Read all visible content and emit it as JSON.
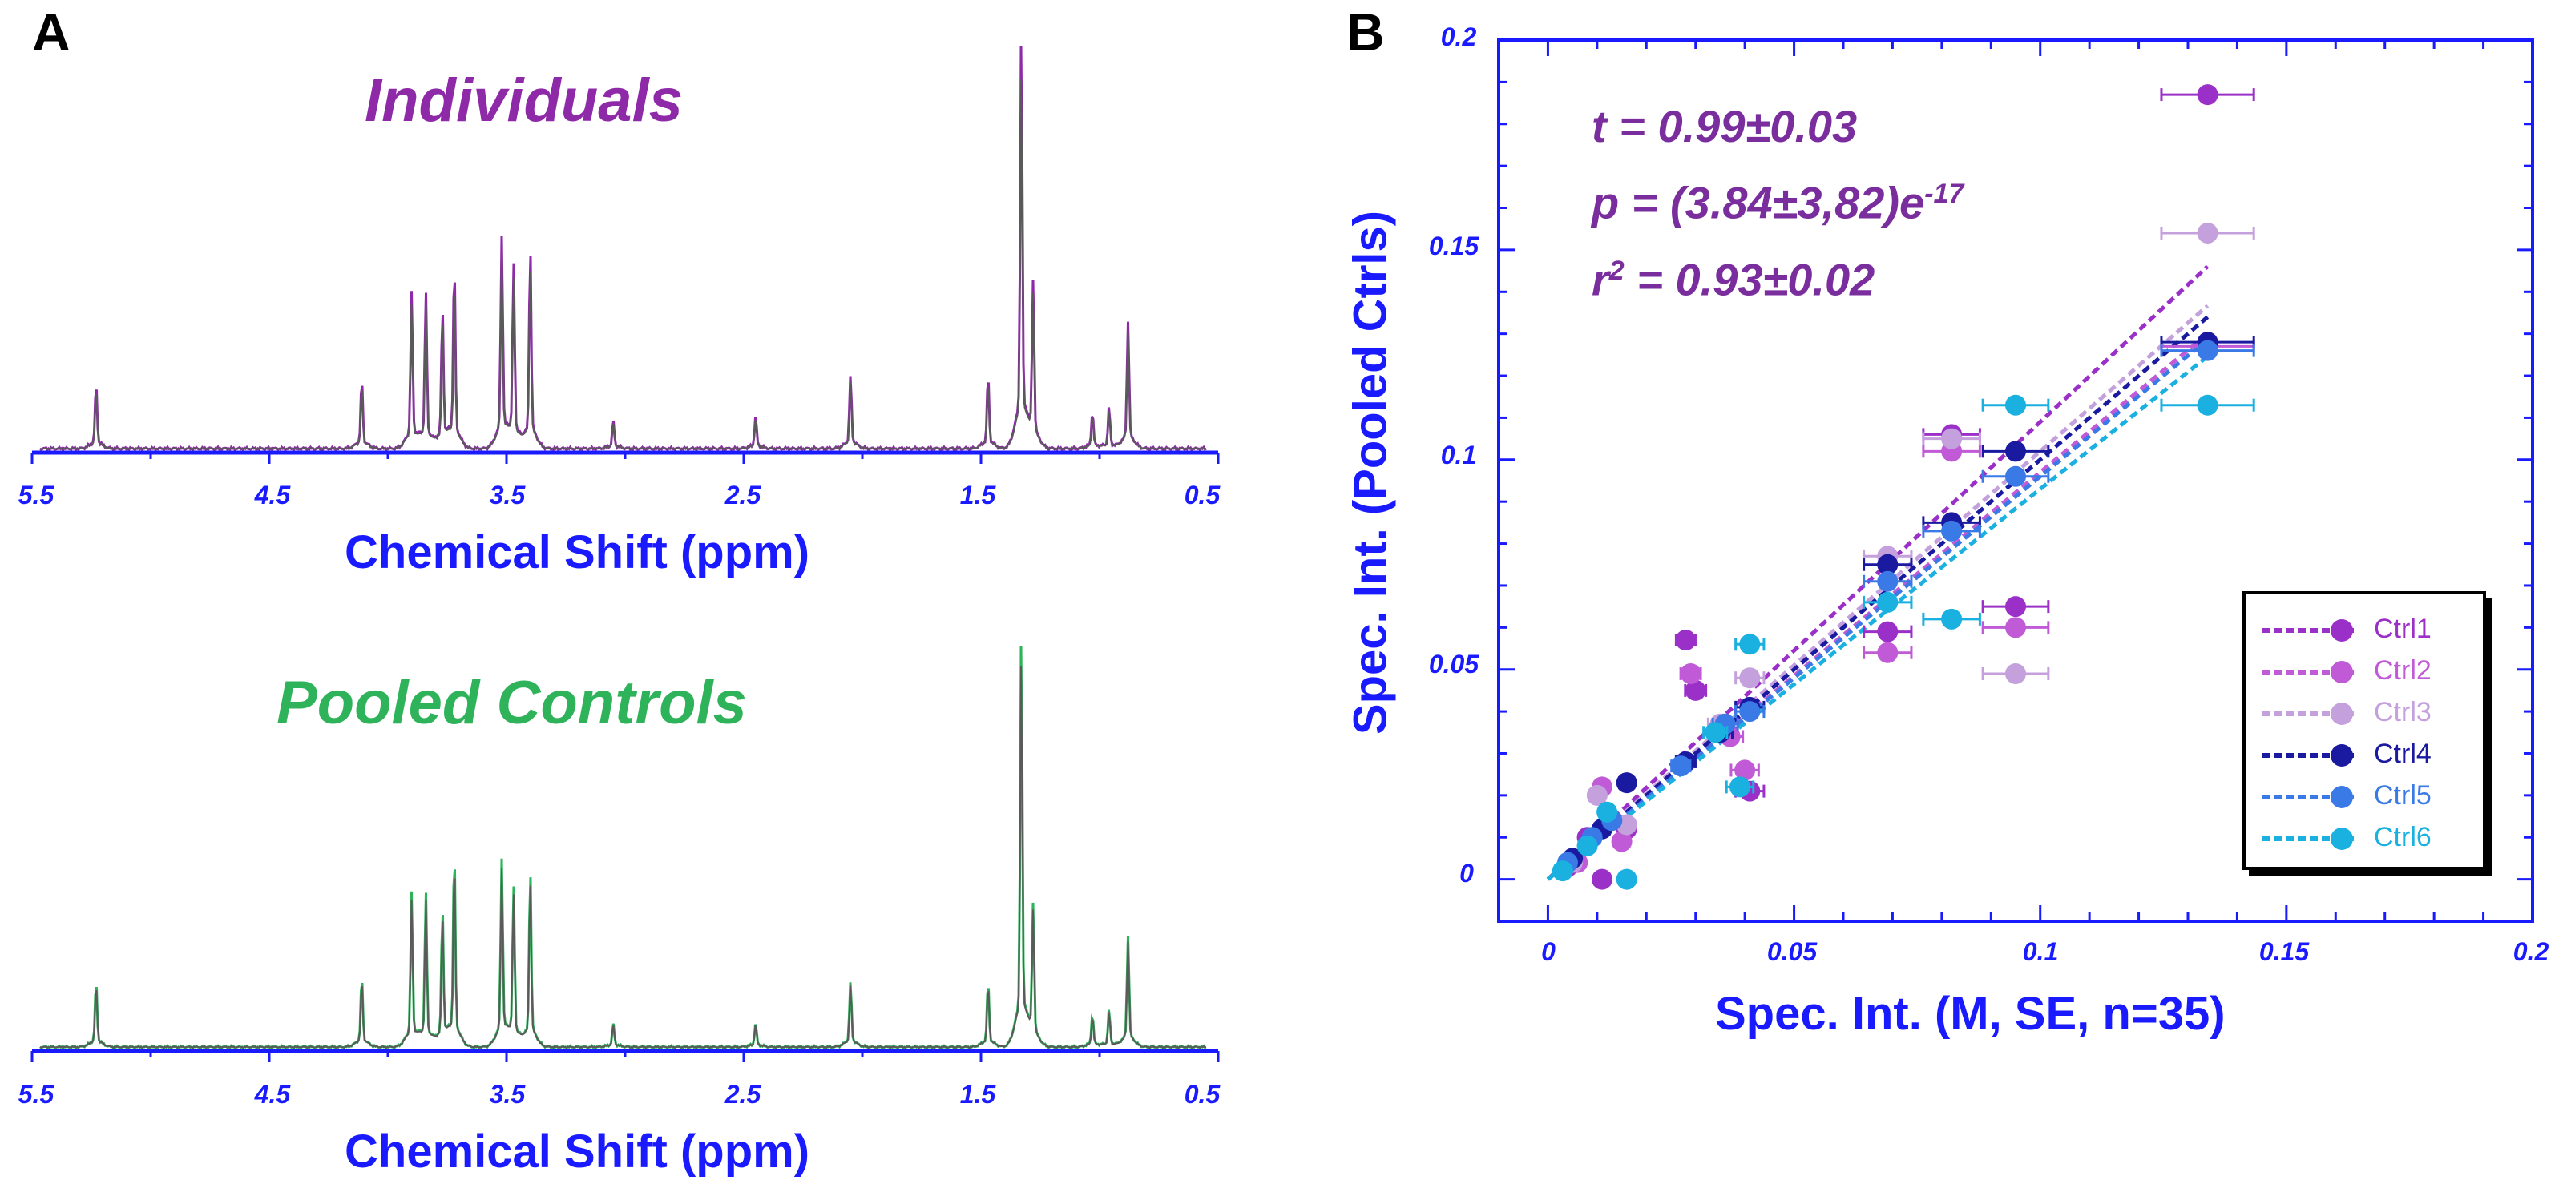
{
  "panel_a": {
    "letter": "A",
    "top_title": "Individuals",
    "bottom_title": "Pooled Controls",
    "x_axis_title": "Chemical Shift (ppm)",
    "x_ticks": [
      "5.5",
      "4.5",
      "3.5",
      "2.5",
      "1.5",
      "0.5"
    ],
    "colors": {
      "individuals": "#8e2aa8",
      "controls": "#2fb35a",
      "trace": "#5a5a5a",
      "axis": "#1a1aff"
    }
  },
  "panel_b": {
    "letter": "B",
    "x_axis_title": "Spec. Int. (M, SE, n=35)",
    "y_axis_title": "Spec. Int. (Pooled Ctrls)",
    "stats": {
      "t": "t = 0.99±0.03",
      "p_main": "p = (3.84±3,82)e",
      "p_exp": "-17",
      "r_main": "r",
      "r_sup": "2",
      "r_rest": " = 0.93±0.02"
    }
  },
  "chart_data": [
    {
      "type": "line",
      "title": "Individuals",
      "xlabel": "Chemical Shift (ppm)",
      "xlim": [
        5.5,
        0.5
      ],
      "x_ticks": [
        5.5,
        4.5,
        3.5,
        2.5,
        1.5,
        0.5
      ],
      "peaks": [
        {
          "ppm": 5.23,
          "height": 0.14
        },
        {
          "ppm": 4.11,
          "height": 0.15
        },
        {
          "ppm": 3.9,
          "height": 0.34
        },
        {
          "ppm": 3.84,
          "height": 0.34
        },
        {
          "ppm": 3.77,
          "height": 0.3
        },
        {
          "ppm": 3.72,
          "height": 0.4
        },
        {
          "ppm": 3.52,
          "height": 0.46
        },
        {
          "ppm": 3.47,
          "height": 0.4
        },
        {
          "ppm": 3.4,
          "height": 0.44
        },
        {
          "ppm": 3.05,
          "height": 0.06
        },
        {
          "ppm": 2.45,
          "height": 0.07
        },
        {
          "ppm": 2.05,
          "height": 0.16
        },
        {
          "ppm": 1.47,
          "height": 0.16
        },
        {
          "ppm": 1.33,
          "height": 0.9
        },
        {
          "ppm": 1.28,
          "height": 0.36
        },
        {
          "ppm": 1.03,
          "height": 0.08
        },
        {
          "ppm": 0.96,
          "height": 0.09
        },
        {
          "ppm": 0.88,
          "height": 0.28
        }
      ]
    },
    {
      "type": "line",
      "title": "Pooled Controls",
      "xlabel": "Chemical Shift (ppm)",
      "xlim": [
        5.5,
        0.5
      ],
      "x_ticks": [
        5.5,
        4.5,
        3.5,
        2.5,
        1.5,
        0.5
      ],
      "peaks": [
        {
          "ppm": 5.23,
          "height": 0.14
        },
        {
          "ppm": 4.11,
          "height": 0.15
        },
        {
          "ppm": 3.9,
          "height": 0.33
        },
        {
          "ppm": 3.84,
          "height": 0.33
        },
        {
          "ppm": 3.77,
          "height": 0.29
        },
        {
          "ppm": 3.72,
          "height": 0.42
        },
        {
          "ppm": 3.52,
          "height": 0.4
        },
        {
          "ppm": 3.47,
          "height": 0.34
        },
        {
          "ppm": 3.4,
          "height": 0.38
        },
        {
          "ppm": 3.05,
          "height": 0.05
        },
        {
          "ppm": 2.45,
          "height": 0.05
        },
        {
          "ppm": 2.05,
          "height": 0.14
        },
        {
          "ppm": 1.47,
          "height": 0.14
        },
        {
          "ppm": 1.33,
          "height": 0.88
        },
        {
          "ppm": 1.28,
          "height": 0.3
        },
        {
          "ppm": 1.03,
          "height": 0.07
        },
        {
          "ppm": 0.96,
          "height": 0.08
        },
        {
          "ppm": 0.88,
          "height": 0.24
        }
      ]
    },
    {
      "type": "scatter",
      "xlabel": "Spec. Int. (M, SE, n=35)",
      "ylabel": "Spec. Int. (Pooled Ctrls)",
      "xlim": [
        -0.01,
        0.2
      ],
      "ylim": [
        -0.01,
        0.2
      ],
      "x_ticks": [
        "0",
        "0.05",
        "0.1",
        "0.15",
        "0.2"
      ],
      "y_ticks": [
        "0",
        "0.05",
        "0.1",
        "0.15",
        "0.2"
      ],
      "legend_position": "bottom-right",
      "series": [
        {
          "name": "Ctrl1",
          "color": "#9b30c8",
          "fit_slope": 1.09,
          "points": [
            [
              0.134,
              0.187
            ],
            [
              0.082,
              0.106
            ],
            [
              0.095,
              0.065
            ],
            [
              0.069,
              0.059
            ],
            [
              0.041,
              0.021
            ],
            [
              0.036,
              0.036
            ],
            [
              0.03,
              0.045
            ],
            [
              0.028,
              0.057
            ],
            [
              0.016,
              0.012
            ],
            [
              0.011,
              0.0
            ],
            [
              0.008,
              0.01
            ],
            [
              0.004,
              0.003
            ]
          ]
        },
        {
          "name": "Ctrl2",
          "color": "#c05ad6",
          "fit_slope": 0.97,
          "points": [
            [
              0.134,
              0.127
            ],
            [
              0.082,
              0.102
            ],
            [
              0.095,
              0.06
            ],
            [
              0.069,
              0.054
            ],
            [
              0.04,
              0.026
            ],
            [
              0.037,
              0.034
            ],
            [
              0.029,
              0.049
            ],
            [
              0.015,
              0.009
            ],
            [
              0.011,
              0.022
            ],
            [
              0.006,
              0.004
            ]
          ]
        },
        {
          "name": "Ctrl3",
          "color": "#c4a0dc",
          "fit_slope": 1.02,
          "points": [
            [
              0.134,
              0.154
            ],
            [
              0.082,
              0.105
            ],
            [
              0.095,
              0.049
            ],
            [
              0.069,
              0.077
            ],
            [
              0.041,
              0.048
            ],
            [
              0.035,
              0.037
            ],
            [
              0.016,
              0.013
            ],
            [
              0.01,
              0.02
            ],
            [
              0.005,
              0.004
            ]
          ]
        },
        {
          "name": "Ctrl4",
          "color": "#1a1aa0",
          "fit_slope": 1.0,
          "points": [
            [
              0.134,
              0.128
            ],
            [
              0.095,
              0.102
            ],
            [
              0.082,
              0.085
            ],
            [
              0.069,
              0.075
            ],
            [
              0.041,
              0.041
            ],
            [
              0.035,
              0.035
            ],
            [
              0.028,
              0.028
            ],
            [
              0.016,
              0.023
            ],
            [
              0.011,
              0.012
            ],
            [
              0.005,
              0.005
            ]
          ]
        },
        {
          "name": "Ctrl5",
          "color": "#3a7ae6",
          "fit_slope": 0.96,
          "points": [
            [
              0.134,
              0.126
            ],
            [
              0.095,
              0.096
            ],
            [
              0.082,
              0.083
            ],
            [
              0.069,
              0.071
            ],
            [
              0.041,
              0.04
            ],
            [
              0.036,
              0.037
            ],
            [
              0.027,
              0.027
            ],
            [
              0.013,
              0.014
            ],
            [
              0.009,
              0.01
            ],
            [
              0.004,
              0.004
            ]
          ]
        },
        {
          "name": "Ctrl6",
          "color": "#1ab0e0",
          "fit_slope": 0.93,
          "points": [
            [
              0.134,
              0.113
            ],
            [
              0.095,
              0.113
            ],
            [
              0.082,
              0.062
            ],
            [
              0.069,
              0.066
            ],
            [
              0.041,
              0.056
            ],
            [
              0.039,
              0.022
            ],
            [
              0.034,
              0.035
            ],
            [
              0.016,
              0.0
            ],
            [
              0.012,
              0.016
            ],
            [
              0.008,
              0.008
            ],
            [
              0.003,
              0.002
            ]
          ]
        }
      ]
    }
  ]
}
